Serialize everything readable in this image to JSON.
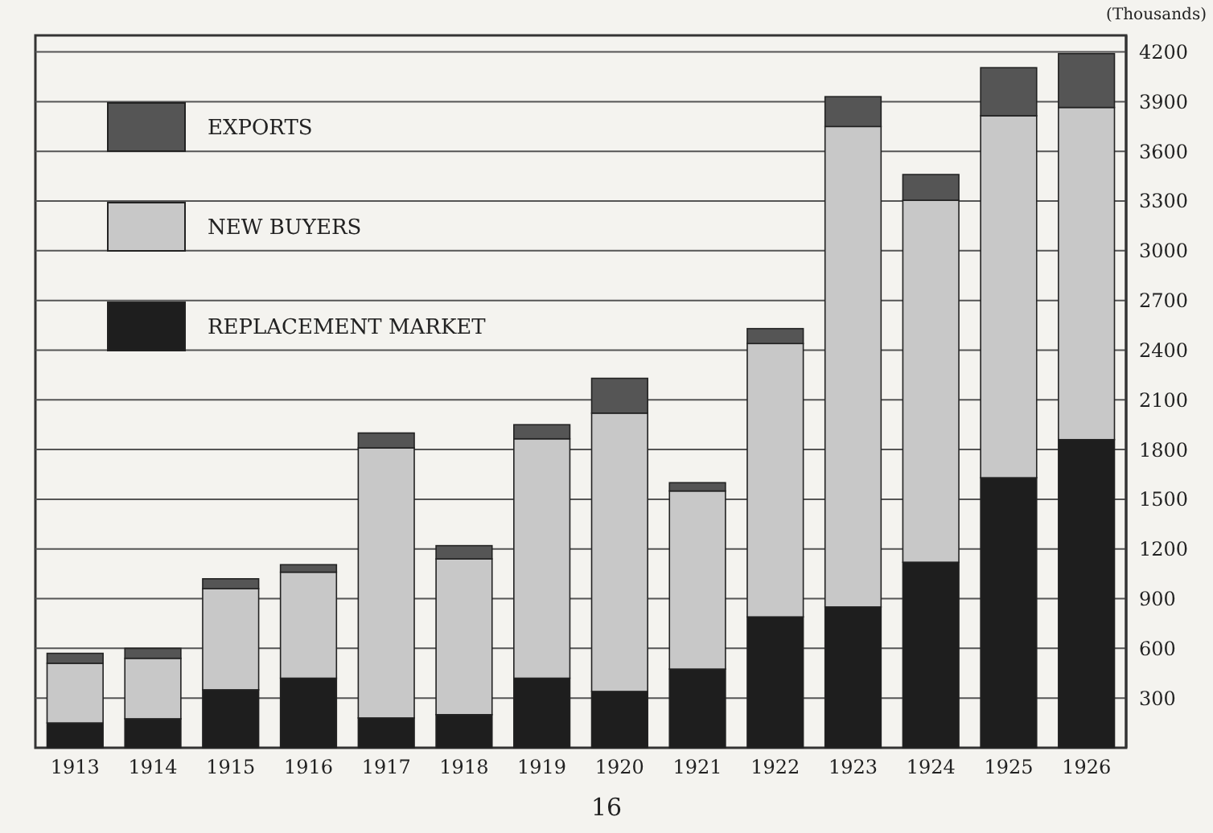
{
  "chart_data": {
    "type": "bar",
    "stacked": true,
    "ylabel": "(Thousands)",
    "categories": [
      "1913",
      "1914",
      "1915",
      "1916",
      "1917",
      "1918",
      "1919",
      "1920",
      "1921",
      "1922",
      "1923",
      "1924",
      "1925",
      "1926"
    ],
    "series": [
      {
        "name": "REPLACEMENT MARKET",
        "color": "#1e1e1e",
        "values": [
          150,
          175,
          350,
          420,
          180,
          200,
          420,
          340,
          475,
          790,
          850,
          1120,
          1630,
          1860
        ]
      },
      {
        "name": "NEW BUYERS",
        "color": "#c8c8c8",
        "values": [
          360,
          365,
          610,
          640,
          1630,
          940,
          1445,
          1680,
          1075,
          1650,
          2900,
          2185,
          2185,
          2005
        ]
      },
      {
        "name": "EXPORTS",
        "color": "#555555",
        "values": [
          60,
          60,
          60,
          45,
          90,
          80,
          85,
          210,
          50,
          90,
          180,
          155,
          290,
          325
        ]
      }
    ],
    "ylim": [
      0,
      4300
    ],
    "yticks": [
      300,
      600,
      900,
      1200,
      1500,
      1800,
      2100,
      2400,
      2700,
      3000,
      3300,
      3600,
      3900,
      4200
    ],
    "grid": "y",
    "legend": "top left",
    "annotations": [
      "16"
    ]
  }
}
